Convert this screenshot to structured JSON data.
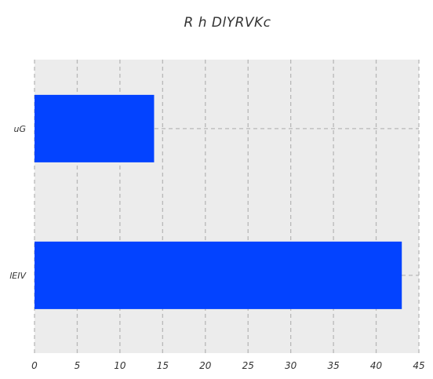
{
  "chart_data": {
    "type": "bar",
    "orientation": "horizontal",
    "title": "R h    DlYRVKc",
    "categories": [
      "uG",
      "lEIV"
    ],
    "values": [
      14,
      43
    ],
    "xlim": [
      0,
      45
    ],
    "xticks": [
      "0",
      "5",
      "10",
      "15",
      "20",
      "25",
      "30",
      "35",
      "40",
      "45"
    ],
    "xlabel": "",
    "ylabel": "",
    "grid": true,
    "grid_style": "dashed",
    "bar_color": "#0343ff",
    "plot_background": "#ececec"
  }
}
